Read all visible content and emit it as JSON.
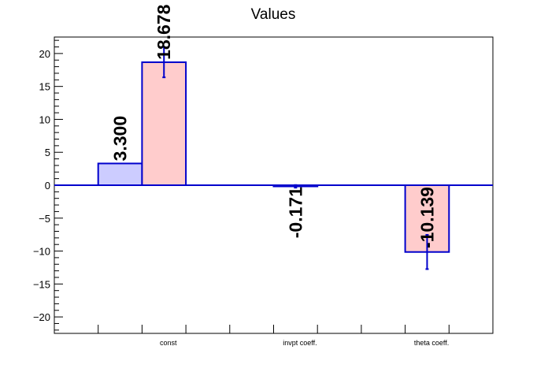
{
  "chart_data": {
    "type": "bar",
    "title": "Values",
    "categories": [
      "const",
      "invpt coeff.",
      "theta coeff."
    ],
    "ylim": [
      -22.5,
      22.5
    ],
    "yticks": [
      -20,
      -15,
      -10,
      -5,
      0,
      5,
      10,
      15,
      20
    ],
    "grid": false,
    "series": [
      {
        "values": [
          3.3,
          null,
          null
        ],
        "errors": [
          0,
          null,
          null
        ],
        "fill": "#ccccff",
        "stroke": "#0000cc",
        "labels": [
          "3.300",
          "",
          ""
        ]
      },
      {
        "values": [
          18.678,
          -0.171,
          -10.139
        ],
        "errors": [
          2.3,
          0.2,
          2.6
        ],
        "fill": "#ffcccc",
        "stroke": "#0000cc",
        "labels": [
          "18.678",
          "-0.171",
          "-10.139"
        ]
      }
    ]
  }
}
